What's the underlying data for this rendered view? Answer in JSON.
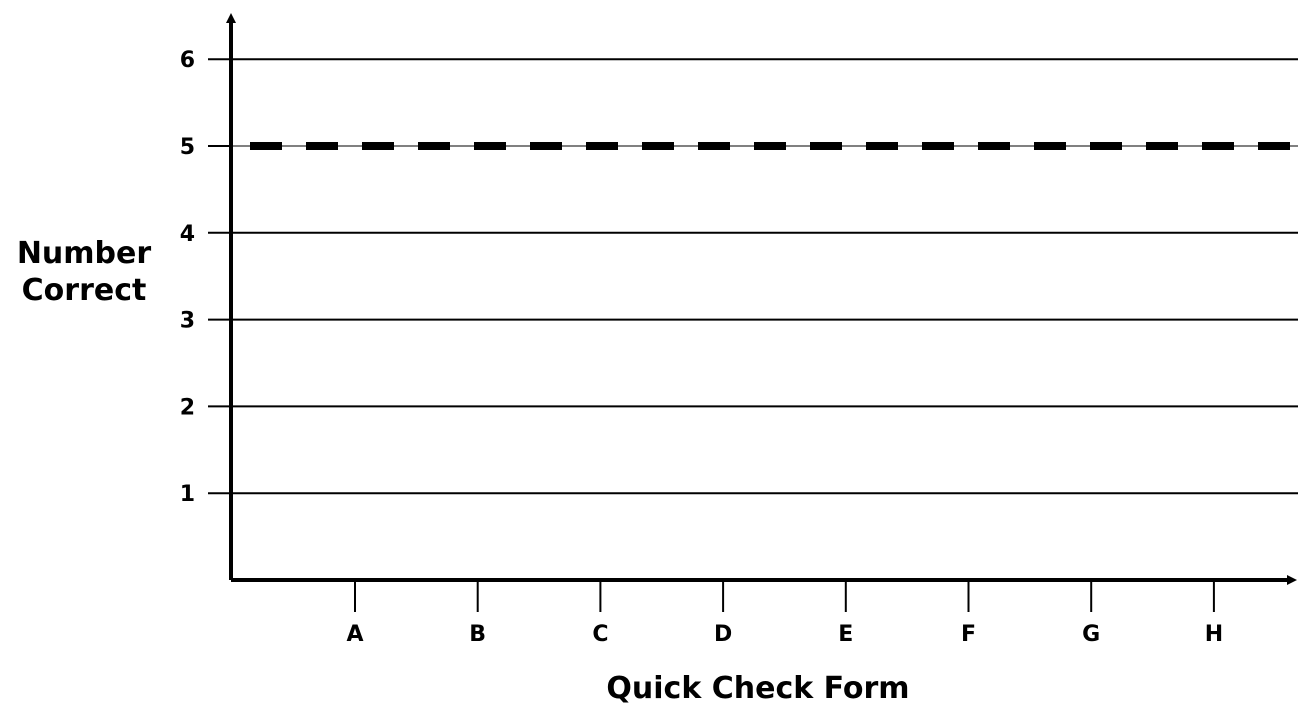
{
  "chart_data": {
    "type": "line",
    "title": "",
    "xlabel": "Quick Check Form",
    "ylabel_lines": [
      "Number",
      "Correct"
    ],
    "categories": [
      "A",
      "B",
      "C",
      "D",
      "E",
      "F",
      "G",
      "H"
    ],
    "y_ticks": [
      1,
      2,
      3,
      4,
      5,
      6
    ],
    "ylim": [
      0,
      6.5
    ],
    "grid": true,
    "reference_line": {
      "y": 5,
      "style": "dashed"
    },
    "series": []
  }
}
